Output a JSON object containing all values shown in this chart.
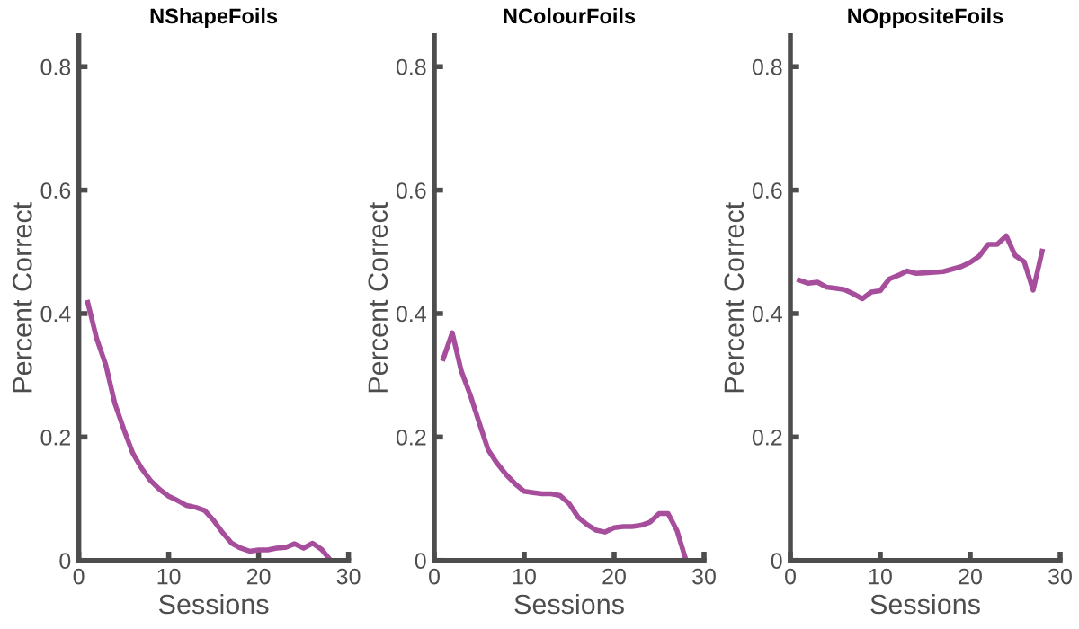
{
  "chart_data": [
    {
      "type": "line",
      "title": "NShapeFoils",
      "xlabel": "Sessions",
      "ylabel": "Percent Correct",
      "x": [
        1,
        2,
        3,
        4,
        5,
        6,
        7,
        8,
        9,
        10,
        11,
        12,
        13,
        14,
        15,
        16,
        17,
        18,
        19,
        20,
        21,
        22,
        23,
        24,
        25,
        26,
        27,
        28
      ],
      "xlim": [
        0,
        30
      ],
      "xticks": [
        0,
        10,
        20,
        30
      ],
      "ylim": [
        0,
        0.85
      ],
      "yticks": [
        0,
        0.2,
        0.4,
        0.6,
        0.8
      ],
      "grid": false,
      "marker": "none",
      "line_style": "solid",
      "series": [
        {
          "color": "#a64d9b",
          "values": [
            0.418,
            0.359,
            0.317,
            0.255,
            0.213,
            0.174,
            0.149,
            0.129,
            0.115,
            0.104,
            0.097,
            0.089,
            0.086,
            0.081,
            0.065,
            0.045,
            0.028,
            0.02,
            0.015,
            0.017,
            0.017,
            0.02,
            0.021,
            0.027,
            0.02,
            0.028,
            0.018,
            0.0
          ]
        }
      ]
    },
    {
      "type": "line",
      "title": "NColourFoils",
      "xlabel": "Sessions",
      "ylabel": "Percent Correct",
      "x": [
        1,
        2,
        3,
        4,
        5,
        6,
        7,
        8,
        9,
        10,
        11,
        12,
        13,
        14,
        15,
        16,
        17,
        18,
        19,
        20,
        21,
        22,
        23,
        24,
        25,
        26,
        27,
        28
      ],
      "xlim": [
        0,
        30
      ],
      "xticks": [
        0,
        10,
        20,
        30
      ],
      "ylim": [
        0,
        0.85
      ],
      "yticks": [
        0,
        0.2,
        0.4,
        0.6,
        0.8
      ],
      "grid": false,
      "marker": "none",
      "line_style": "solid",
      "series": [
        {
          "color": "#a64d9b",
          "values": [
            0.327,
            0.369,
            0.307,
            0.268,
            0.223,
            0.179,
            0.157,
            0.139,
            0.124,
            0.112,
            0.11,
            0.108,
            0.108,
            0.105,
            0.092,
            0.07,
            0.058,
            0.049,
            0.046,
            0.053,
            0.055,
            0.055,
            0.057,
            0.062,
            0.076,
            0.076,
            0.048,
            0.0
          ]
        }
      ]
    },
    {
      "type": "line",
      "title": "NOppositeFoils",
      "xlabel": "Sessions",
      "ylabel": "Percent Correct",
      "x": [
        1,
        2,
        3,
        4,
        5,
        6,
        7,
        8,
        9,
        10,
        11,
        12,
        13,
        14,
        15,
        16,
        17,
        18,
        19,
        20,
        21,
        22,
        23,
        24,
        25,
        26,
        27,
        28
      ],
      "xlim": [
        0,
        30
      ],
      "xticks": [
        0,
        10,
        20,
        30
      ],
      "ylim": [
        0,
        0.85
      ],
      "yticks": [
        0,
        0.2,
        0.4,
        0.6,
        0.8
      ],
      "grid": false,
      "marker": "none",
      "line_style": "solid",
      "series": [
        {
          "color": "#a64d9b",
          "values": [
            0.454,
            0.449,
            0.451,
            0.443,
            0.441,
            0.439,
            0.432,
            0.424,
            0.435,
            0.437,
            0.456,
            0.462,
            0.469,
            0.465,
            0.466,
            0.467,
            0.468,
            0.472,
            0.476,
            0.483,
            0.493,
            0.512,
            0.512,
            0.526,
            0.494,
            0.484,
            0.438,
            0.501
          ]
        }
      ]
    }
  ]
}
